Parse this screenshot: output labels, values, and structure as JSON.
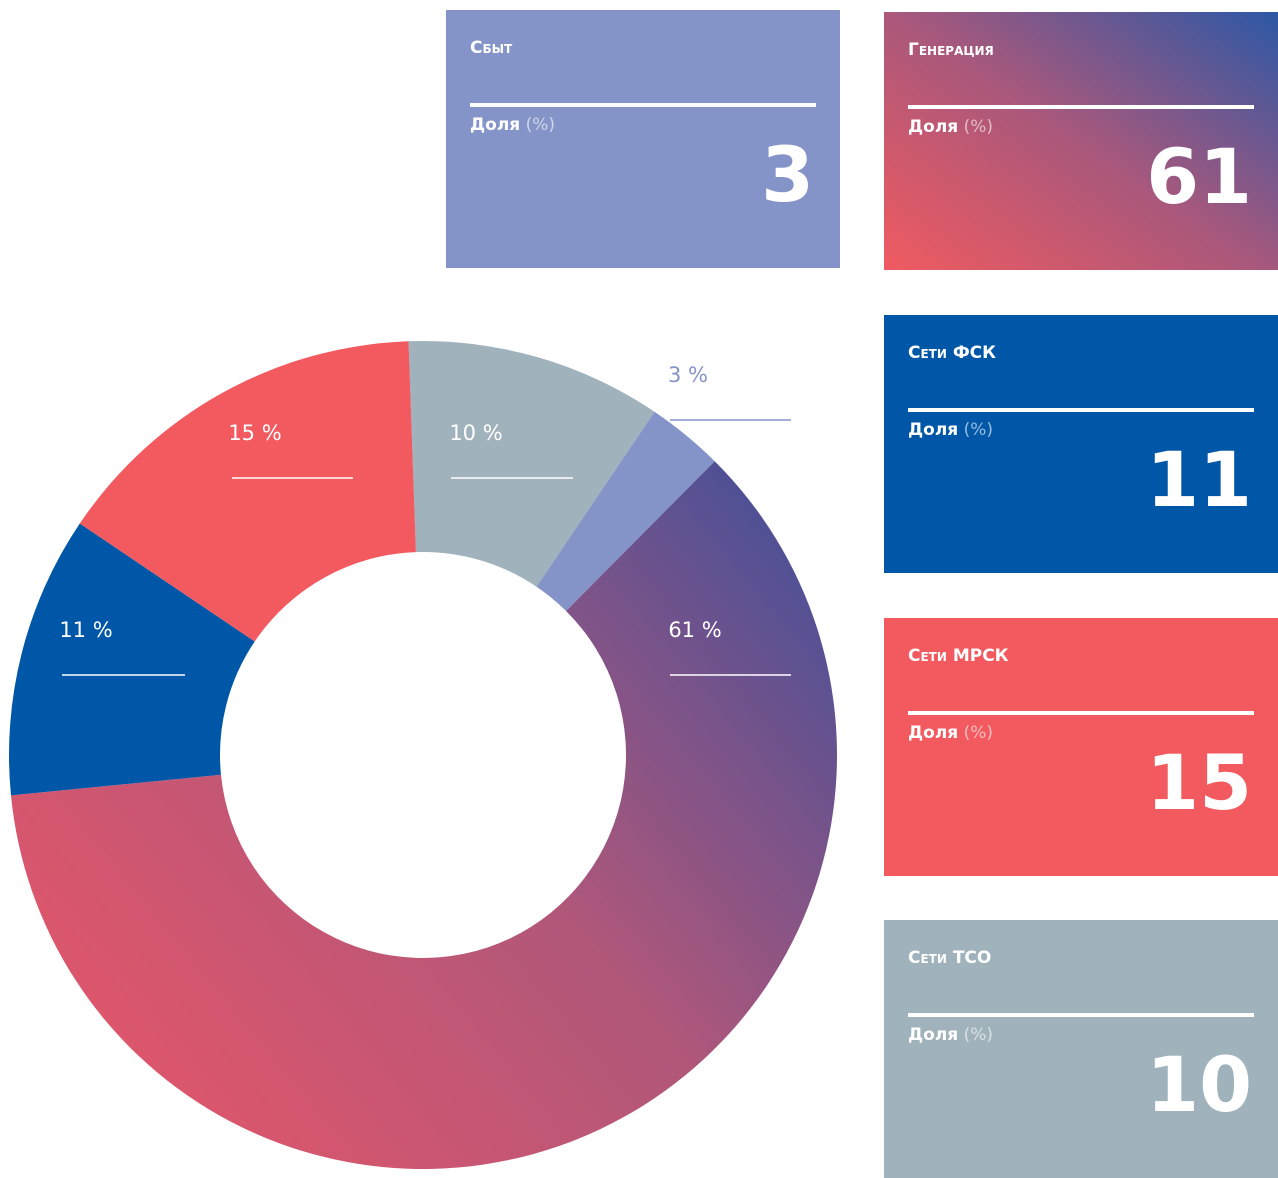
{
  "chart_data": {
    "type": "pie",
    "categories": [
      "Сети ТСО",
      "Сбыт",
      "Генерация",
      "Сети ФСК",
      "Сети МРСК"
    ],
    "values": [
      10,
      3,
      61,
      11,
      15
    ],
    "value_labels": [
      "10 %",
      "3 %",
      "61 %",
      "11 %",
      "15 %"
    ],
    "colors": [
      "#a0b2bc",
      "#8594c8",
      "gradient",
      "#0057a8",
      "#f25a60"
    ],
    "card_label": "Доля",
    "card_unit": "(%)"
  }
}
